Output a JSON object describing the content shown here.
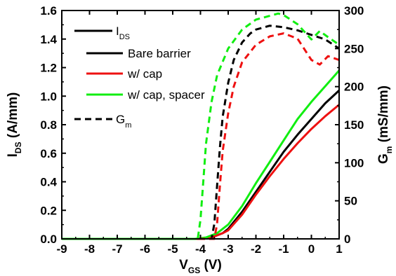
{
  "chart_data": {
    "type": "line",
    "title": "",
    "xlabel": {
      "main": "V",
      "sub": "GS",
      "unit": " (V)"
    },
    "ylabel_left": {
      "main": "I",
      "sub": "DS",
      "unit": " (A/mm)"
    },
    "ylabel_right": {
      "main": "G",
      "sub": "m",
      "unit": " (mS/mm)"
    },
    "xlim": [
      -9,
      1
    ],
    "ylim_left": [
      0,
      1.6
    ],
    "ylim_right": [
      0,
      300
    ],
    "x_ticks": [
      -9,
      -8,
      -7,
      -6,
      -5,
      -4,
      -3,
      -2,
      -1,
      0,
      1
    ],
    "x_tick_labels": [
      "-9",
      "-8",
      "-7",
      "-6",
      "-5",
      "-4",
      "-3",
      "-2",
      "-1",
      "0",
      "1"
    ],
    "yl_ticks": [
      0,
      0.2,
      0.4,
      0.6,
      0.8,
      1.0,
      1.2,
      1.4,
      1.6
    ],
    "yl_tick_labels": [
      "0.0",
      "0.2",
      "0.4",
      "0.6",
      "0.8",
      "1.0",
      "1.2",
      "1.4",
      "1.6"
    ],
    "yr_ticks": [
      0,
      50,
      100,
      150,
      200,
      250,
      300
    ],
    "yr_tick_labels": [
      "0",
      "50",
      "100",
      "150",
      "200",
      "250",
      "300"
    ],
    "legend": {
      "position": "top-left",
      "ids_header": {
        "main": "I",
        "sub": "DS"
      },
      "entries": [
        {
          "label": "Bare barrier",
          "color": "#000000"
        },
        {
          "label": "w/ cap",
          "color": "#ee1111"
        },
        {
          "label": "w/ cap, spacer",
          "color": "#11ee11"
        }
      ],
      "gm_header": {
        "main": "G",
        "sub": "m"
      }
    },
    "series": [
      {
        "name": "Bare barrier",
        "axis": "left",
        "style": "solid",
        "color": "#000000",
        "points": [
          [
            -9,
            0
          ],
          [
            -4,
            0
          ],
          [
            -3.6,
            0.01
          ],
          [
            -3.2,
            0.04
          ],
          [
            -3,
            0.07
          ],
          [
            -2.5,
            0.19
          ],
          [
            -2,
            0.33
          ],
          [
            -1.5,
            0.47
          ],
          [
            -1,
            0.61
          ],
          [
            -0.5,
            0.73
          ],
          [
            0,
            0.84
          ],
          [
            0.5,
            0.95
          ],
          [
            1,
            1.04
          ]
        ]
      },
      {
        "name": "w/ cap",
        "axis": "left",
        "style": "solid",
        "color": "#ee1111",
        "points": [
          [
            -9,
            0
          ],
          [
            -4,
            0
          ],
          [
            -3.6,
            0.01
          ],
          [
            -3.2,
            0.04
          ],
          [
            -3,
            0.06
          ],
          [
            -2.5,
            0.17
          ],
          [
            -2,
            0.31
          ],
          [
            -1.5,
            0.44
          ],
          [
            -1,
            0.56
          ],
          [
            -0.5,
            0.67
          ],
          [
            0,
            0.77
          ],
          [
            0.5,
            0.86
          ],
          [
            1,
            0.94
          ]
        ]
      },
      {
        "name": "w/ cap, spacer",
        "axis": "left",
        "style": "solid",
        "color": "#11ee11",
        "points": [
          [
            -9,
            0
          ],
          [
            -4.2,
            0
          ],
          [
            -3.8,
            0.01
          ],
          [
            -3.4,
            0.04
          ],
          [
            -3,
            0.1
          ],
          [
            -2.5,
            0.23
          ],
          [
            -2,
            0.39
          ],
          [
            -1.5,
            0.54
          ],
          [
            -1,
            0.69
          ],
          [
            -0.5,
            0.84
          ],
          [
            0,
            0.96
          ],
          [
            0.5,
            1.07
          ],
          [
            1,
            1.18
          ]
        ]
      },
      {
        "name": "Gm Bare barrier",
        "axis": "right",
        "style": "dashed",
        "color": "#000000",
        "points": [
          [
            -9,
            0
          ],
          [
            -3.6,
            0
          ],
          [
            -3.5,
            20
          ],
          [
            -3.4,
            70
          ],
          [
            -3.3,
            120
          ],
          [
            -3.2,
            160
          ],
          [
            -3.0,
            205
          ],
          [
            -2.8,
            235
          ],
          [
            -2.5,
            258
          ],
          [
            -2.2,
            270
          ],
          [
            -2,
            275
          ],
          [
            -1.5,
            280
          ],
          [
            -1,
            278
          ],
          [
            -0.5,
            274
          ],
          [
            0,
            268
          ],
          [
            0.5,
            262
          ],
          [
            1,
            250
          ]
        ]
      },
      {
        "name": "Gm w/ cap",
        "axis": "right",
        "style": "dashed",
        "color": "#ee1111",
        "points": [
          [
            -9,
            0
          ],
          [
            -3.5,
            0
          ],
          [
            -3.4,
            20
          ],
          [
            -3.3,
            70
          ],
          [
            -3.2,
            115
          ],
          [
            -3.0,
            165
          ],
          [
            -2.8,
            200
          ],
          [
            -2.5,
            232
          ],
          [
            -2,
            255
          ],
          [
            -1.5,
            266
          ],
          [
            -1,
            270
          ],
          [
            -0.5,
            263
          ],
          [
            0,
            235
          ],
          [
            0.3,
            229
          ],
          [
            0.6,
            240
          ],
          [
            1,
            235
          ]
        ]
      },
      {
        "name": "Gm w/ cap, spacer",
        "axis": "right",
        "style": "dashed",
        "color": "#11ee11",
        "points": [
          [
            -9,
            0
          ],
          [
            -4.1,
            0
          ],
          [
            -4.0,
            25
          ],
          [
            -3.9,
            75
          ],
          [
            -3.8,
            125
          ],
          [
            -3.6,
            180
          ],
          [
            -3.4,
            215
          ],
          [
            -3.0,
            250
          ],
          [
            -2.5,
            275
          ],
          [
            -2,
            288
          ],
          [
            -1.5,
            293
          ],
          [
            -1.2,
            296
          ],
          [
            -1,
            294
          ],
          [
            -0.5,
            282
          ],
          [
            0,
            262
          ],
          [
            0.3,
            273
          ],
          [
            0.6,
            265
          ],
          [
            1,
            255
          ]
        ]
      }
    ]
  }
}
